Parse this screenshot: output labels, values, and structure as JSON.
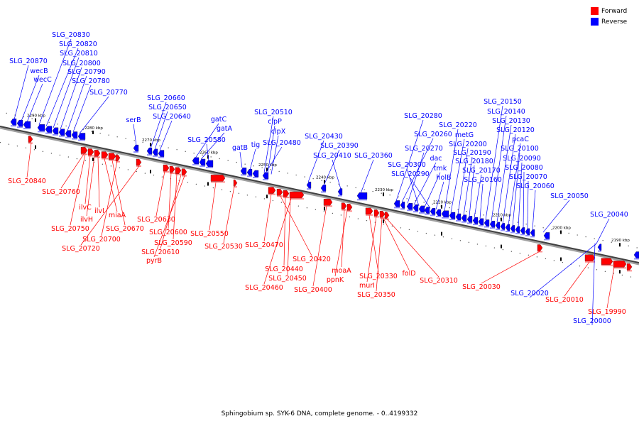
{
  "legend": {
    "forward_label": "Forward",
    "reverse_label": "Reverse",
    "forward_color": "#ff0000",
    "reverse_color": "#0000ff"
  },
  "caption": "Sphingobium sp. SYK-6 DNA, complete genome. - 0..4199332",
  "ticks": [
    "2290 kbp",
    "2280 kbp",
    "2270 kbp",
    "2260 kbp",
    "2250 kbp",
    "2240 kbp",
    "2230 kbp",
    "2220 kbp",
    "2210 kbp",
    "2200 kbp",
    "2190 kbp"
  ],
  "reverse_genes": [
    "SLG_20830",
    "SLG_20820",
    "SLG_20810",
    "SLG_20870",
    "SLG_20800",
    "wecB",
    "SLG_20790",
    "wecC",
    "SLG_20780",
    "SLG_20770",
    "SLG_20660",
    "SLG_20650",
    "SLG_20640",
    "serB",
    "gatC",
    "SLG_20510",
    "gatA",
    "clpP",
    "clpX",
    "SLG_20580",
    "gatB",
    "tig",
    "SLG_20480",
    "SLG_20430",
    "SLG_20390",
    "SLG_20410",
    "SLG_20360",
    "SLG_20280",
    "SLG_20260",
    "SLG_20270",
    "dac",
    "SLG_20300",
    "tmk",
    "SLG_20290",
    "holB",
    "SLG_20220",
    "metG",
    "SLG_20200",
    "SLG_20190",
    "SLG_20180",
    "SLG_20170",
    "SLG_20160",
    "SLG_20150",
    "SLG_20140",
    "SLG_20130",
    "SLG_20120",
    "pcaC",
    "SLG_20100",
    "SLG_20090",
    "SLG_20080",
    "SLG_20070",
    "SLG_20060",
    "SLG_20050",
    "SLG_20040",
    "SLG_20020",
    "SLG_20000"
  ],
  "forward_genes": [
    "SLG_20840",
    "SLG_20760",
    "ilvC",
    "ilvI",
    "ilvH",
    "miaA",
    "SLG_20750",
    "SLG_20670",
    "SLG_20700",
    "SLG_20720",
    "SLG_20630",
    "SLG_20600",
    "SLG_20590",
    "SLG_20610",
    "pyrB",
    "SLG_20550",
    "SLG_20530",
    "SLG_20470",
    "SLG_20420",
    "SLG_20440",
    "SLG_20450",
    "SLG_20460",
    "SLG_20400",
    "moaA",
    "ppnK",
    "SLG_20330",
    "murI",
    "SLG_20350",
    "folD",
    "SLG_20310",
    "SLG_20030",
    "SLG_20010",
    "SLG_19990"
  ]
}
